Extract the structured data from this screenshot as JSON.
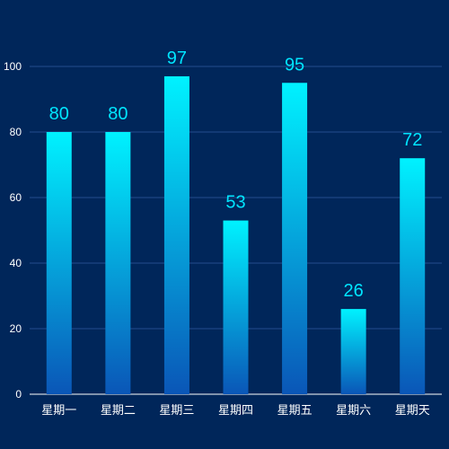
{
  "chart_data": {
    "type": "bar",
    "categories": [
      "星期一",
      "星期二",
      "星期三",
      "星期四",
      "星期五",
      "星期六",
      "星期天"
    ],
    "values": [
      80,
      80,
      97,
      53,
      95,
      26,
      72
    ],
    "ylim": [
      0,
      100
    ],
    "yticks": [
      0,
      20,
      40,
      60,
      80,
      100
    ],
    "grid": true,
    "colors": {
      "background": "#00265a",
      "bar_top": "#00f2ff",
      "bar_bottom": "#0a56b7",
      "value_label": "#00e5ff",
      "axis_text": "#ffffff",
      "grid": "#234c8d",
      "axis_line": "#ffffff"
    }
  }
}
